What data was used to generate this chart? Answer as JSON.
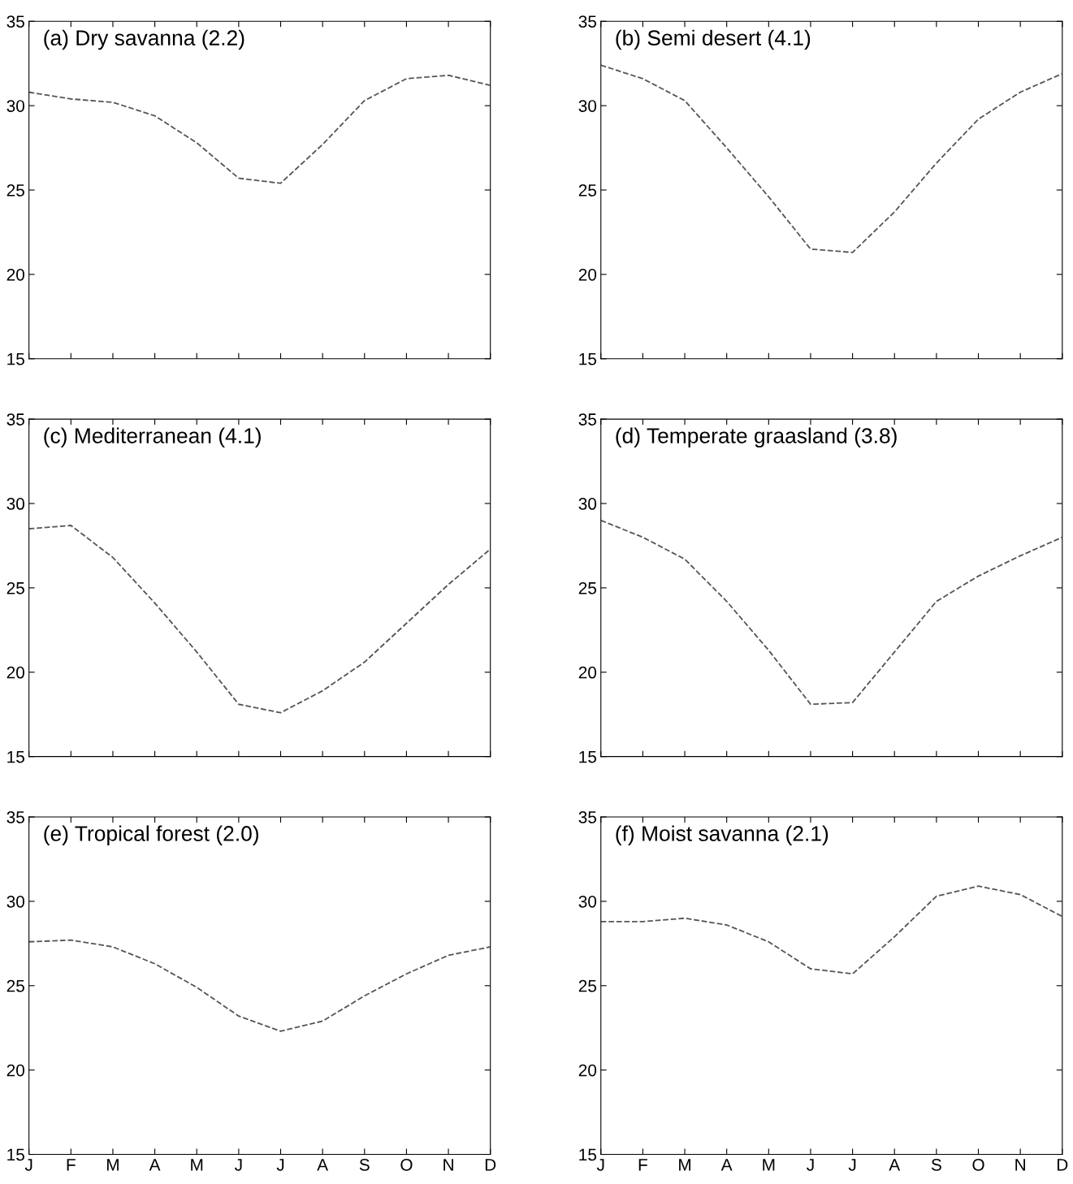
{
  "chart_data": [
    {
      "type": "line",
      "title": "(a) Dry savanna (2.2)",
      "categories": [
        null,
        null,
        null,
        null,
        null,
        null,
        null,
        null,
        null,
        null,
        null,
        null
      ],
      "ylim": [
        15,
        35
      ],
      "yticks": [
        15,
        20,
        25,
        30,
        35
      ],
      "line_style": "dashed",
      "marker": "none",
      "grid": false,
      "series": [
        {
          "color": "#555555",
          "values": [
            30.8,
            30.4,
            30.2,
            29.4,
            27.8,
            25.7,
            25.4,
            27.7,
            30.3,
            31.6,
            31.8,
            31.2
          ]
        }
      ]
    },
    {
      "type": "line",
      "title": "(b) Semi desert (4.1)",
      "categories": [
        null,
        null,
        null,
        null,
        null,
        null,
        null,
        null,
        null,
        null,
        null,
        null
      ],
      "ylim": [
        15,
        35
      ],
      "yticks": [
        15,
        20,
        25,
        30,
        35
      ],
      "line_style": "dashed",
      "marker": "none",
      "grid": false,
      "series": [
        {
          "color": "#555555",
          "values": [
            32.4,
            31.6,
            30.3,
            27.5,
            24.6,
            21.5,
            21.3,
            23.7,
            26.6,
            29.2,
            30.8,
            31.9
          ]
        }
      ]
    },
    {
      "type": "line",
      "title": "(c) Mediterranean (4.1)",
      "categories": [
        null,
        null,
        null,
        null,
        null,
        null,
        null,
        null,
        null,
        null,
        null,
        null
      ],
      "ylim": [
        15,
        35
      ],
      "yticks": [
        15,
        20,
        25,
        30,
        35
      ],
      "line_style": "dashed",
      "marker": "none",
      "grid": false,
      "series": [
        {
          "color": "#555555",
          "values": [
            28.5,
            28.7,
            26.8,
            24.1,
            21.2,
            18.1,
            17.6,
            18.9,
            20.6,
            22.9,
            25.2,
            27.3
          ]
        }
      ]
    },
    {
      "type": "line",
      "title": "(d) Temperate graasland (3.8)",
      "categories": [
        null,
        null,
        null,
        null,
        null,
        null,
        null,
        null,
        null,
        null,
        null,
        null
      ],
      "ylim": [
        15,
        35
      ],
      "yticks": [
        15,
        20,
        25,
        30,
        35
      ],
      "line_style": "dashed",
      "marker": "none",
      "grid": false,
      "series": [
        {
          "color": "#555555",
          "values": [
            29.0,
            28.0,
            26.7,
            24.2,
            21.3,
            18.1,
            18.2,
            21.2,
            24.2,
            25.7,
            26.9,
            28.0
          ]
        }
      ]
    },
    {
      "type": "line",
      "title": "(e) Tropical forest (2.0)",
      "categories": [
        "J",
        "F",
        "M",
        "A",
        "M",
        "J",
        "J",
        "A",
        "S",
        "O",
        "N",
        "D"
      ],
      "ylim": [
        15,
        35
      ],
      "yticks": [
        15,
        20,
        25,
        30,
        35
      ],
      "line_style": "dashed",
      "marker": "none",
      "grid": false,
      "series": [
        {
          "color": "#555555",
          "values": [
            27.6,
            27.7,
            27.3,
            26.3,
            24.9,
            23.2,
            22.3,
            22.9,
            24.4,
            25.7,
            26.8,
            27.3
          ]
        }
      ]
    },
    {
      "type": "line",
      "title": "(f) Moist savanna (2.1)",
      "categories": [
        "J",
        "F",
        "M",
        "A",
        "M",
        "J",
        "J",
        "A",
        "S",
        "O",
        "N",
        "D"
      ],
      "ylim": [
        15,
        35
      ],
      "yticks": [
        15,
        20,
        25,
        30,
        35
      ],
      "line_style": "dashed",
      "marker": "none",
      "grid": false,
      "series": [
        {
          "color": "#555555",
          "values": [
            28.8,
            28.8,
            29.0,
            28.6,
            27.6,
            26.0,
            25.7,
            27.9,
            30.3,
            30.9,
            30.4,
            29.1
          ]
        }
      ]
    }
  ]
}
